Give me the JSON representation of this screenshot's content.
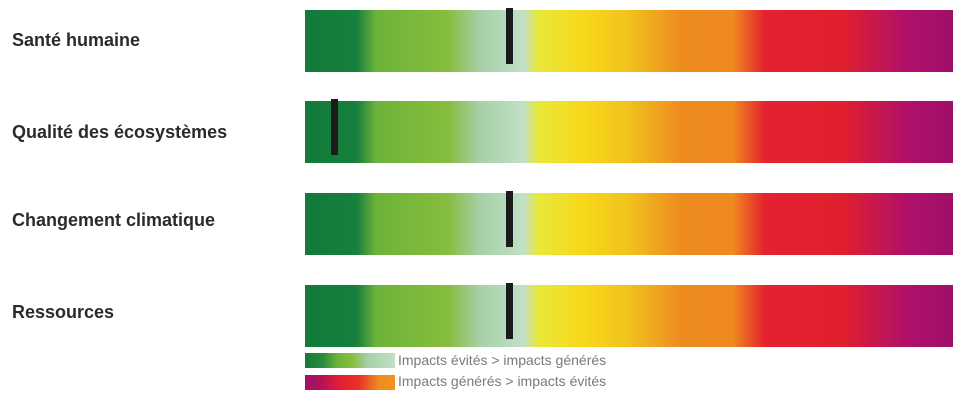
{
  "chart_data": {
    "type": "bar",
    "categories": [
      "Santé humaine",
      "Qualité des écosystèmes",
      "Changement climatique",
      "Ressources"
    ],
    "marker_positions": [
      0.315,
      0.045,
      0.315,
      0.315
    ],
    "scale": {
      "left": "Impacts évités > impacts générés",
      "right": "Impacts générés > impacts évités"
    },
    "legend": [
      {
        "label": "Impacts évités > impacts générés",
        "color": "#127a3a"
      },
      {
        "label": "Impacts générés > impacts évités",
        "color": "#e42130"
      }
    ],
    "gradient_colors": [
      "#127a3a",
      "#86bd3d",
      "#c2e0c7",
      "#f7d81a",
      "#ef8a1f",
      "#e42130",
      "#9f0f68"
    ],
    "title": "",
    "xlabel": "",
    "ylabel": ""
  }
}
